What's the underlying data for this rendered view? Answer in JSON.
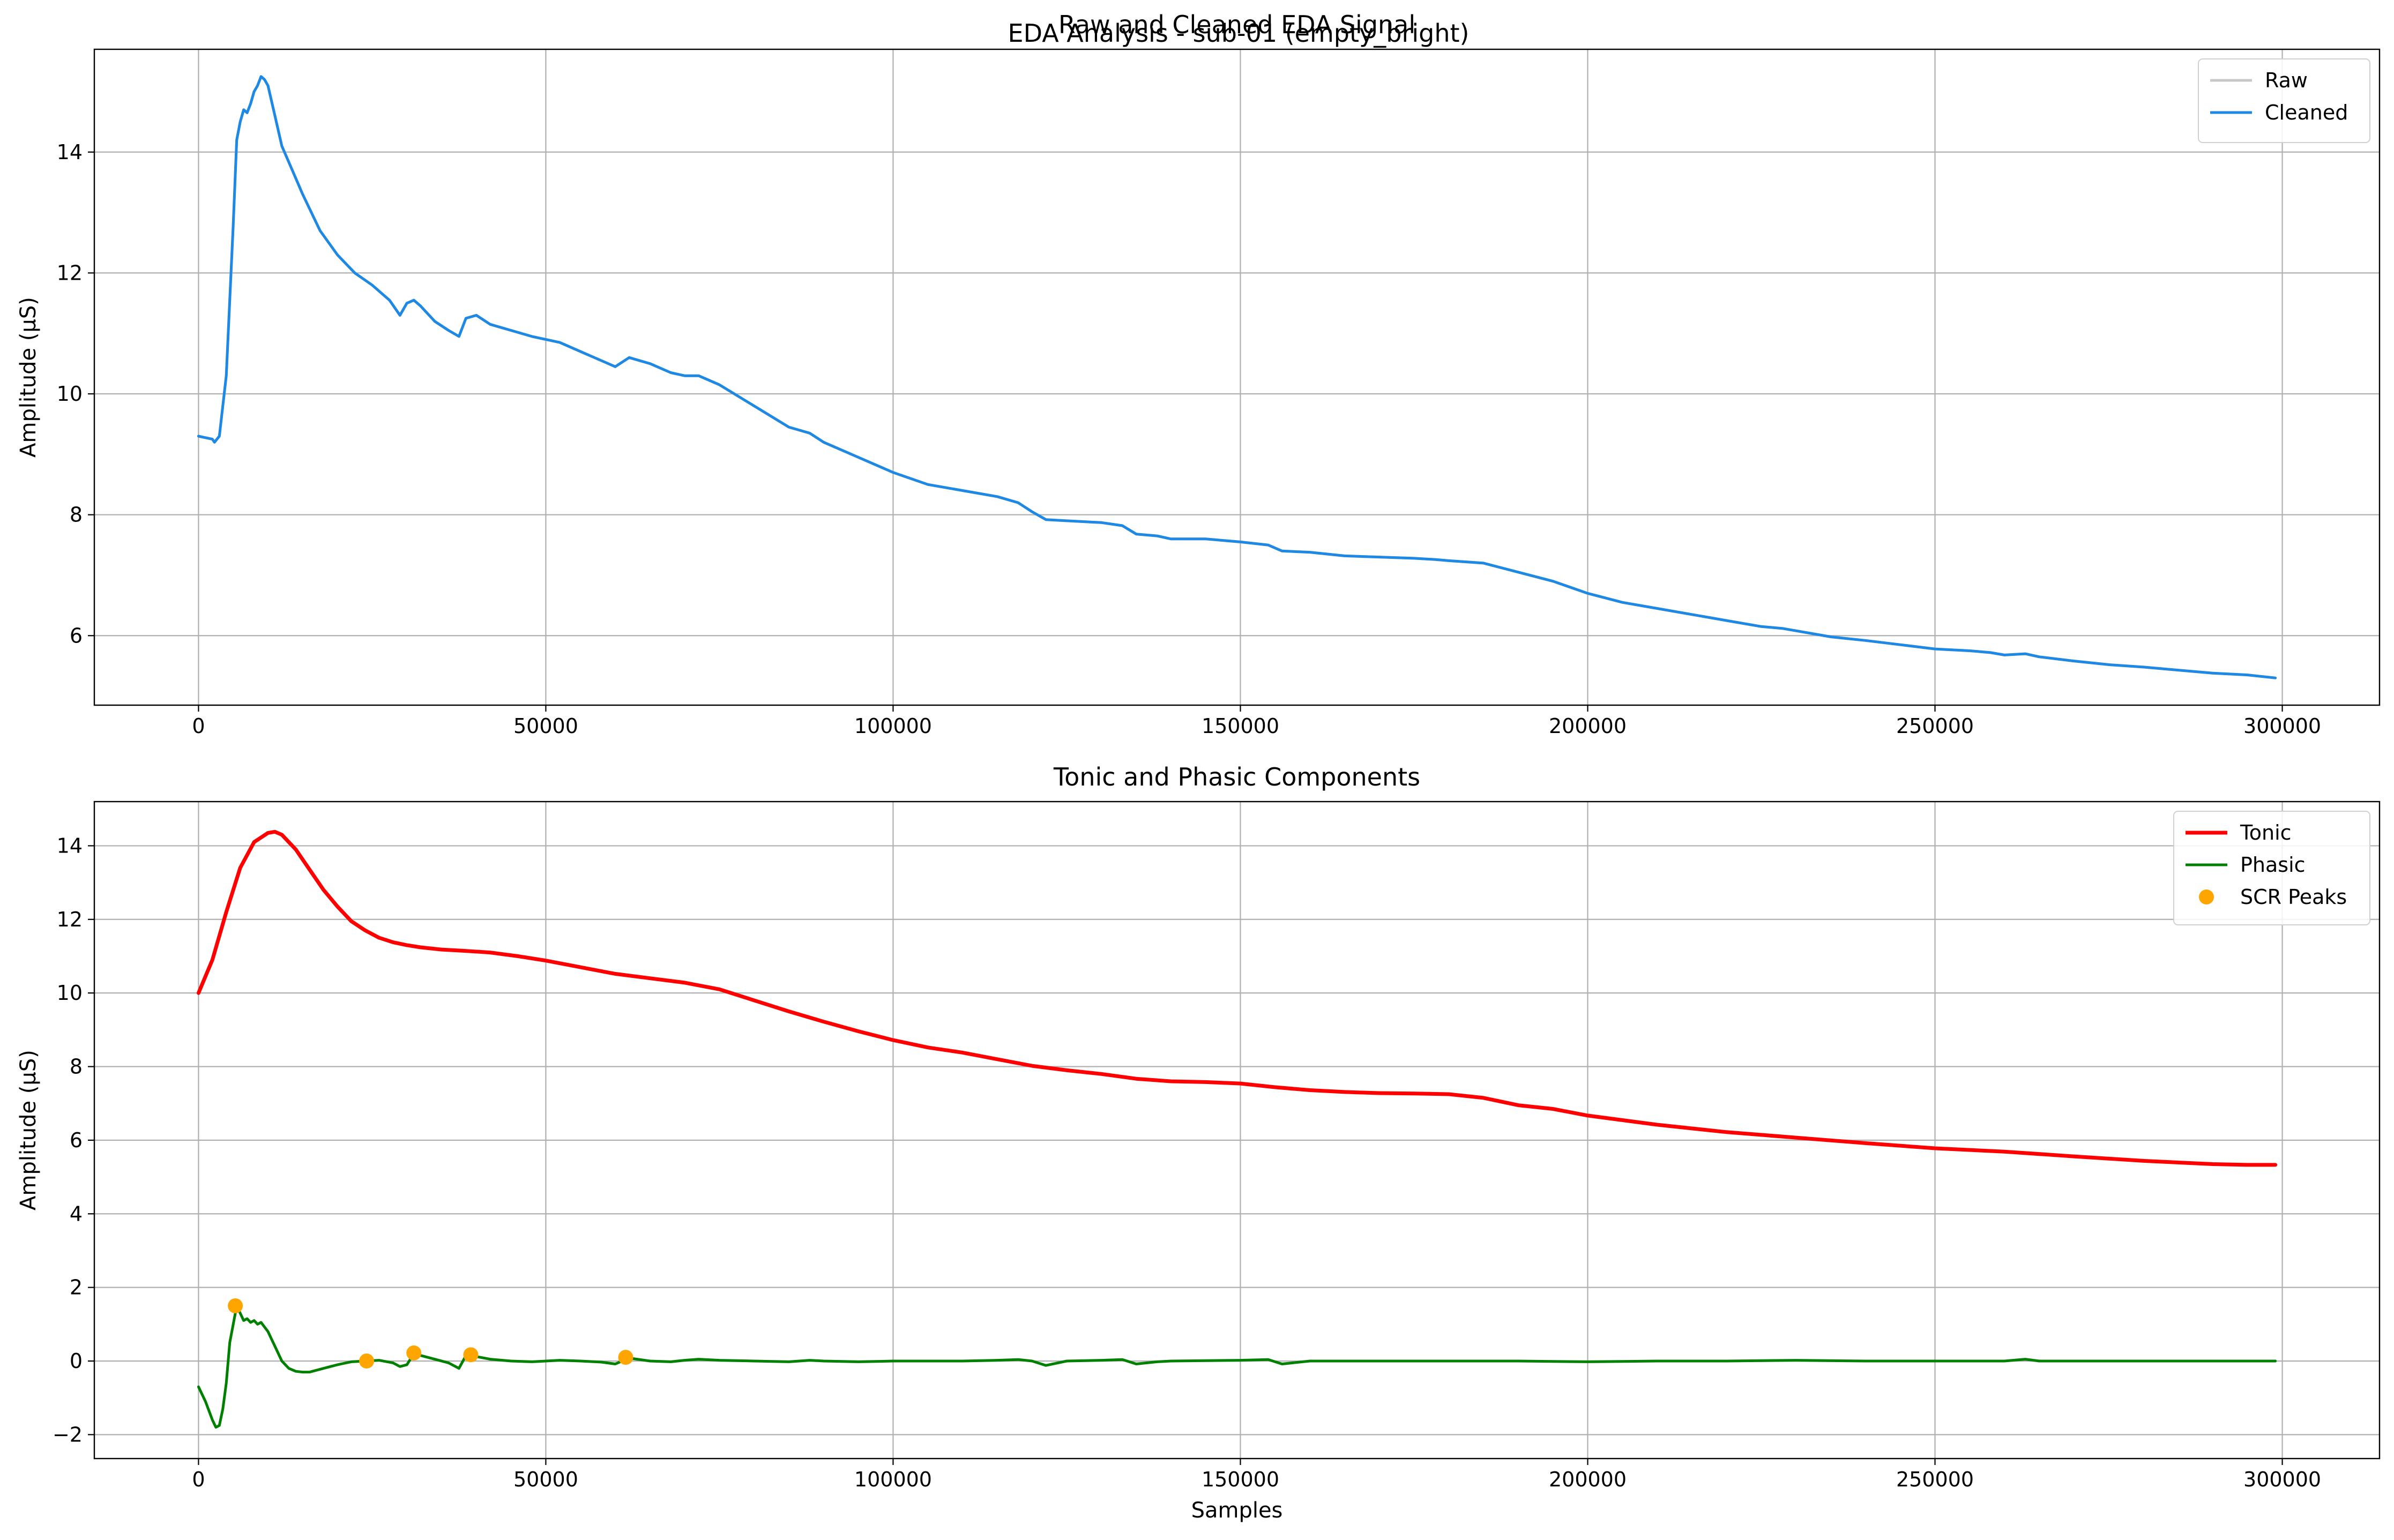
{
  "figure": {
    "suptitle": "EDA Analysis - sub-01 (empty_bright)"
  },
  "chart_data": [
    {
      "type": "line",
      "title": "Raw and Cleaned EDA Signal",
      "xlabel": "",
      "ylabel": "Amplitude (μS)",
      "xlim": [
        -15000,
        314000
      ],
      "ylim": [
        4.85,
        15.7
      ],
      "x_ticks": [
        0,
        50000,
        100000,
        150000,
        200000,
        250000,
        300000
      ],
      "y_ticks": [
        6,
        8,
        10,
        12,
        14
      ],
      "grid": true,
      "legend": "top-right",
      "series": [
        {
          "name": "Raw",
          "color": "#c8c8c8",
          "x": [
            0,
            2000,
            2300,
            3000,
            4000,
            5000,
            5500,
            6000,
            6500,
            7000,
            7500,
            8000,
            8500,
            9000,
            9500,
            10000,
            11000,
            12000,
            13500,
            15000,
            17500,
            20000,
            22500,
            25000,
            27500,
            29000,
            30000,
            31000,
            32000,
            34000,
            36000,
            37500,
            38500,
            40000,
            42000,
            45000,
            48000,
            52000,
            55000,
            58000,
            60000,
            62000,
            65000,
            68000,
            70000,
            72000,
            75000,
            80000,
            85000,
            88000,
            90000,
            95000,
            100000,
            105000,
            110000,
            115000,
            118000,
            120000,
            122000,
            125000,
            130000,
            133000,
            135000,
            138000,
            140000,
            145000,
            150000,
            154000,
            156000,
            160000,
            165000,
            170000,
            175000,
            178000,
            180000,
            185000,
            190000,
            195000,
            200000,
            205000,
            210000,
            215000,
            220000,
            225000,
            228000,
            230000,
            235000,
            240000,
            245000,
            250000,
            255000,
            258000,
            260000,
            263000,
            265000,
            270000,
            275000,
            280000,
            285000,
            290000,
            295000,
            299000
          ],
          "y": [
            9.3,
            9.25,
            9.2,
            9.3,
            10.3,
            12.8,
            14.2,
            14.5,
            14.7,
            14.65,
            14.8,
            15.0,
            15.1,
            15.25,
            15.2,
            15.1,
            14.6,
            14.1,
            13.7,
            13.3,
            12.7,
            12.3,
            12.0,
            11.8,
            11.55,
            11.3,
            11.5,
            11.55,
            11.45,
            11.2,
            11.05,
            10.95,
            11.25,
            11.3,
            11.15,
            11.05,
            10.95,
            10.85,
            10.7,
            10.55,
            10.45,
            10.6,
            10.5,
            10.35,
            10.3,
            10.3,
            10.15,
            9.8,
            9.45,
            9.35,
            9.2,
            8.95,
            8.7,
            8.5,
            8.4,
            8.3,
            8.2,
            8.05,
            7.92,
            7.9,
            7.87,
            7.82,
            7.68,
            7.65,
            7.6,
            7.6,
            7.55,
            7.5,
            7.4,
            7.38,
            7.32,
            7.3,
            7.28,
            7.26,
            7.24,
            7.2,
            7.05,
            6.9,
            6.7,
            6.55,
            6.45,
            6.35,
            6.25,
            6.15,
            6.12,
            6.08,
            5.98,
            5.92,
            5.85,
            5.78,
            5.75,
            5.72,
            5.68,
            5.7,
            5.65,
            5.58,
            5.52,
            5.48,
            5.43,
            5.38,
            5.35,
            5.3
          ]
        },
        {
          "name": "Cleaned",
          "color": "#1e88e5",
          "x": [
            0,
            2000,
            2300,
            3000,
            4000,
            5000,
            5500,
            6000,
            6500,
            7000,
            7500,
            8000,
            8500,
            9000,
            9500,
            10000,
            11000,
            12000,
            13500,
            15000,
            17500,
            20000,
            22500,
            25000,
            27500,
            29000,
            30000,
            31000,
            32000,
            34000,
            36000,
            37500,
            38500,
            40000,
            42000,
            45000,
            48000,
            52000,
            55000,
            58000,
            60000,
            62000,
            65000,
            68000,
            70000,
            72000,
            75000,
            80000,
            85000,
            88000,
            90000,
            95000,
            100000,
            105000,
            110000,
            115000,
            118000,
            120000,
            122000,
            125000,
            130000,
            133000,
            135000,
            138000,
            140000,
            145000,
            150000,
            154000,
            156000,
            160000,
            165000,
            170000,
            175000,
            178000,
            180000,
            185000,
            190000,
            195000,
            200000,
            205000,
            210000,
            215000,
            220000,
            225000,
            228000,
            230000,
            235000,
            240000,
            245000,
            250000,
            255000,
            258000,
            260000,
            263000,
            265000,
            270000,
            275000,
            280000,
            285000,
            290000,
            295000,
            299000
          ],
          "y": [
            9.3,
            9.25,
            9.2,
            9.3,
            10.3,
            12.8,
            14.2,
            14.5,
            14.7,
            14.65,
            14.8,
            15.0,
            15.1,
            15.25,
            15.2,
            15.1,
            14.6,
            14.1,
            13.7,
            13.3,
            12.7,
            12.3,
            12.0,
            11.8,
            11.55,
            11.3,
            11.5,
            11.55,
            11.45,
            11.2,
            11.05,
            10.95,
            11.25,
            11.3,
            11.15,
            11.05,
            10.95,
            10.85,
            10.7,
            10.55,
            10.45,
            10.6,
            10.5,
            10.35,
            10.3,
            10.3,
            10.15,
            9.8,
            9.45,
            9.35,
            9.2,
            8.95,
            8.7,
            8.5,
            8.4,
            8.3,
            8.2,
            8.05,
            7.92,
            7.9,
            7.87,
            7.82,
            7.68,
            7.65,
            7.6,
            7.6,
            7.55,
            7.5,
            7.4,
            7.38,
            7.32,
            7.3,
            7.28,
            7.26,
            7.24,
            7.2,
            7.05,
            6.9,
            6.7,
            6.55,
            6.45,
            6.35,
            6.25,
            6.15,
            6.12,
            6.08,
            5.98,
            5.92,
            5.85,
            5.78,
            5.75,
            5.72,
            5.68,
            5.7,
            5.65,
            5.58,
            5.52,
            5.48,
            5.43,
            5.38,
            5.35,
            5.3
          ]
        }
      ]
    },
    {
      "type": "line",
      "title": "Tonic and Phasic Components",
      "xlabel": "Samples",
      "ylabel": "Amplitude (μS)",
      "xlim": [
        -15000,
        314000
      ],
      "ylim": [
        -2.65,
        15.2
      ],
      "x_ticks": [
        0,
        50000,
        100000,
        150000,
        200000,
        250000,
        300000
      ],
      "y_ticks": [
        -2,
        0,
        2,
        4,
        6,
        8,
        10,
        12,
        14
      ],
      "grid": true,
      "legend": "top-right",
      "series": [
        {
          "name": "Tonic",
          "color": "#ff0000",
          "x": [
            0,
            2000,
            4000,
            6000,
            8000,
            10000,
            11000,
            12000,
            14000,
            16000,
            18000,
            20000,
            22000,
            24000,
            26000,
            28000,
            30000,
            32000,
            35000,
            38000,
            42000,
            46000,
            50000,
            55000,
            60000,
            65000,
            70000,
            75000,
            80000,
            85000,
            90000,
            95000,
            100000,
            105000,
            110000,
            115000,
            120000,
            125000,
            130000,
            135000,
            140000,
            145000,
            150000,
            155000,
            160000,
            165000,
            170000,
            175000,
            180000,
            185000,
            190000,
            195000,
            200000,
            210000,
            220000,
            230000,
            240000,
            250000,
            260000,
            270000,
            280000,
            290000,
            295000,
            299000
          ],
          "y": [
            10.0,
            10.9,
            12.2,
            13.4,
            14.1,
            14.35,
            14.38,
            14.3,
            13.9,
            13.35,
            12.8,
            12.35,
            11.95,
            11.7,
            11.5,
            11.38,
            11.3,
            11.24,
            11.18,
            11.15,
            11.1,
            11.0,
            10.88,
            10.7,
            10.52,
            10.4,
            10.28,
            10.1,
            9.8,
            9.5,
            9.22,
            8.96,
            8.72,
            8.52,
            8.38,
            8.2,
            8.02,
            7.9,
            7.8,
            7.67,
            7.6,
            7.58,
            7.54,
            7.44,
            7.36,
            7.31,
            7.28,
            7.27,
            7.25,
            7.15,
            6.95,
            6.85,
            6.67,
            6.42,
            6.22,
            6.07,
            5.92,
            5.78,
            5.69,
            5.56,
            5.44,
            5.35,
            5.33,
            5.33
          ]
        },
        {
          "name": "Phasic",
          "color": "#008000",
          "x": [
            0,
            1000,
            2000,
            2500,
            3000,
            3500,
            4000,
            4500,
            5000,
            5500,
            6000,
            6500,
            7000,
            7500,
            8000,
            8500,
            9000,
            10000,
            11000,
            12000,
            13000,
            14000,
            15000,
            16000,
            18000,
            20000,
            22000,
            24000,
            26000,
            28000,
            29000,
            30000,
            31000,
            32000,
            34000,
            36000,
            37500,
            38500,
            40000,
            42000,
            45000,
            48000,
            52000,
            55000,
            58000,
            60000,
            62000,
            65000,
            68000,
            70000,
            72000,
            75000,
            80000,
            85000,
            88000,
            90000,
            95000,
            100000,
            110000,
            115000,
            118000,
            120000,
            122000,
            125000,
            130000,
            133000,
            135000,
            138000,
            140000,
            150000,
            154000,
            156000,
            160000,
            170000,
            180000,
            190000,
            200000,
            210000,
            220000,
            230000,
            240000,
            250000,
            260000,
            263000,
            265000,
            270000,
            280000,
            290000,
            299000
          ],
          "y": [
            -0.7,
            -1.1,
            -1.6,
            -1.8,
            -1.75,
            -1.3,
            -0.6,
            0.5,
            1.0,
            1.5,
            1.3,
            1.1,
            1.15,
            1.05,
            1.1,
            1.0,
            1.05,
            0.8,
            0.4,
            0.0,
            -0.2,
            -0.28,
            -0.3,
            -0.3,
            -0.2,
            -0.1,
            -0.02,
            0.0,
            0.02,
            -0.05,
            -0.15,
            -0.1,
            0.2,
            0.15,
            0.05,
            -0.05,
            -0.2,
            0.15,
            0.12,
            0.05,
            0.0,
            -0.02,
            0.02,
            0.0,
            -0.03,
            -0.08,
            0.08,
            0.0,
            -0.02,
            0.02,
            0.05,
            0.02,
            0.0,
            -0.02,
            0.02,
            0.0,
            -0.02,
            0.0,
            0.0,
            0.02,
            0.04,
            0.0,
            -0.12,
            0.0,
            0.02,
            0.04,
            -0.08,
            -0.02,
            0.0,
            0.02,
            0.04,
            -0.08,
            0.0,
            0.0,
            0.0,
            0.0,
            -0.02,
            0.0,
            0.0,
            0.02,
            0.0,
            0.0,
            0.0,
            0.05,
            0.0,
            0.0,
            0.0,
            0.0,
            0.0
          ]
        }
      ],
      "scatter": {
        "name": "SCR Peaks",
        "color": "#ffa500",
        "x": [
          5300,
          24200,
          31000,
          39200,
          61500
        ],
        "y": [
          1.5,
          0.0,
          0.22,
          0.17,
          0.1
        ]
      }
    }
  ]
}
